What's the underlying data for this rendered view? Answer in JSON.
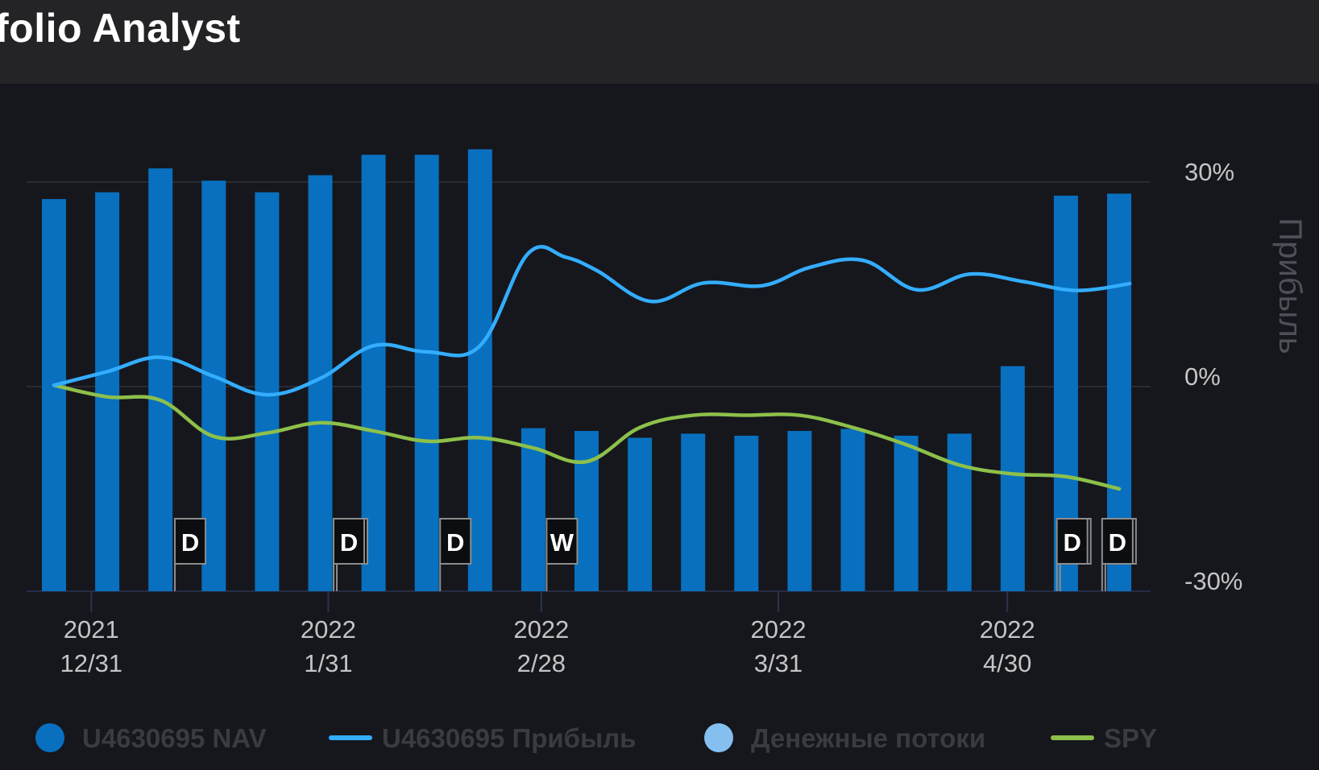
{
  "header": {
    "title": "folio Analyst"
  },
  "colors": {
    "nav": "#0870bf",
    "profit": "#33adff",
    "cashflow": "#85bff0",
    "spy": "#8dc04a",
    "grid": "#30313a",
    "axis_text": "#c4c4c4",
    "marker_bg": "#0c0d10",
    "marker_border": "#8d8d8d",
    "legend_text": "#3a3b41"
  },
  "chart_data": {
    "type": "bar",
    "ylabel": "Прибыль",
    "ylim": [
      -30,
      30
    ],
    "y_ticks": [
      {
        "value": 30,
        "label": "30%"
      },
      {
        "value": 0,
        "label": "0%"
      },
      {
        "value": -30,
        "label": "-30%"
      }
    ],
    "x_ticks": [
      {
        "index": 0.7,
        "year": "2021",
        "date": "12/31"
      },
      {
        "index": 5.15,
        "year": "2022",
        "date": "1/31"
      },
      {
        "index": 9.15,
        "year": "2022",
        "date": "2/28"
      },
      {
        "index": 13.6,
        "year": "2022",
        "date": "3/31"
      },
      {
        "index": 17.9,
        "year": "2022",
        "date": "4/30"
      }
    ],
    "bar_count": 21,
    "nav_series": {
      "name": "U4630695 NAV",
      "values": [
        27.5,
        28.5,
        32,
        30.2,
        28.5,
        31,
        34,
        34,
        34.8,
        -6.1,
        -6.5,
        -7.5,
        -6.9,
        -7.2,
        -6.5,
        -6.2,
        -7.2,
        -6.9,
        3,
        28,
        28.3
      ]
    },
    "profit_series": {
      "name": "U4630695 Прибыль",
      "points": [
        [
          0,
          0.2
        ],
        [
          1,
          2.2
        ],
        [
          2,
          4.3
        ],
        [
          3,
          1.5
        ],
        [
          4,
          -1.2
        ],
        [
          5,
          1.2
        ],
        [
          6,
          6
        ],
        [
          7,
          5.1
        ],
        [
          8,
          6
        ],
        [
          8.9,
          19.5
        ],
        [
          9.6,
          19
        ],
        [
          10.2,
          17
        ],
        [
          11.2,
          12.5
        ],
        [
          12.2,
          15.2
        ],
        [
          13.3,
          14.8
        ],
        [
          14.2,
          17.5
        ],
        [
          15.2,
          18.5
        ],
        [
          16.2,
          14.2
        ],
        [
          17.2,
          16.5
        ],
        [
          18.2,
          15.4
        ],
        [
          19.2,
          14.1
        ],
        [
          20.2,
          15.1
        ]
      ]
    },
    "spy_series": {
      "name": "SPY",
      "points": [
        [
          0,
          0.2
        ],
        [
          1,
          -1.5
        ],
        [
          2,
          -2
        ],
        [
          3,
          -7.3
        ],
        [
          4,
          -6.8
        ],
        [
          5,
          -5.3
        ],
        [
          6,
          -6.5
        ],
        [
          7,
          -8
        ],
        [
          8,
          -7.5
        ],
        [
          9,
          -9
        ],
        [
          10,
          -11
        ],
        [
          11,
          -6
        ],
        [
          12,
          -4.2
        ],
        [
          13,
          -4.2
        ],
        [
          14,
          -4.2
        ],
        [
          15,
          -6
        ],
        [
          16,
          -8.5
        ],
        [
          17,
          -11.5
        ],
        [
          18,
          -12.8
        ],
        [
          19,
          -13.2
        ],
        [
          20,
          -15
        ]
      ]
    },
    "cashflow_series": {
      "name": "Денежные потоки"
    },
    "flags": [
      {
        "index": 2.27,
        "label": "D",
        "double": false
      },
      {
        "index": 5.25,
        "label": "D",
        "double": true
      },
      {
        "index": 7.25,
        "label": "D",
        "double": false
      },
      {
        "index": 9.25,
        "label": "W",
        "double": false
      },
      {
        "index": 18.83,
        "label": "D",
        "double": true
      },
      {
        "index": 19.68,
        "label": "D",
        "double": true
      }
    ],
    "legend": [
      "U4630695 NAV",
      "U4630695 Прибыль",
      "Денежные потоки",
      "SPY"
    ]
  }
}
